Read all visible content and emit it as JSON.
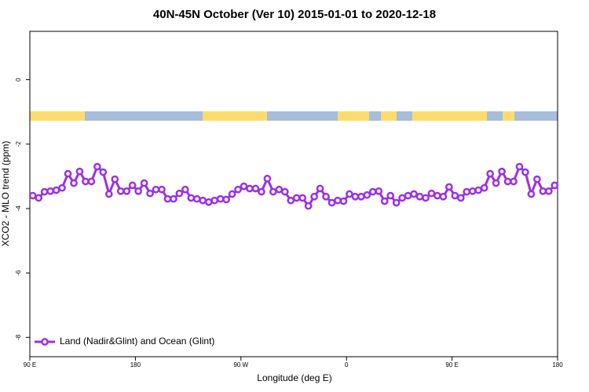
{
  "chart_data": {
    "type": "line",
    "title": "40N-45N October (Ver 10)   2015-01-01 to 2020-12-18",
    "x_label": "Longitude (deg E)",
    "y_label": "XCO2 - MLO trend (ppm)",
    "xlim": [
      90,
      540
    ],
    "xticks": [
      {
        "value": 90,
        "label": "90 E"
      },
      {
        "value": 180,
        "label": "180"
      },
      {
        "value": 270,
        "label": "90 W"
      },
      {
        "value": 360,
        "label": "0"
      },
      {
        "value": 450,
        "label": "90 E"
      },
      {
        "value": 540,
        "label": "180"
      }
    ],
    "ylim": [
      -8.6,
      1.5
    ],
    "yticks": [
      0,
      -2,
      -4,
      -6,
      -8
    ],
    "legend_position": "bottom-left",
    "x": [
      92.5,
      97.5,
      102.5,
      107.5,
      112.5,
      117.5,
      122.5,
      127.5,
      132.5,
      137.5,
      142.5,
      147.5,
      152.5,
      157.5,
      162.5,
      167.5,
      172.5,
      177.5,
      182.5,
      187.5,
      192.5,
      197.5,
      202.5,
      207.5,
      212.5,
      217.5,
      222.5,
      227.5,
      232.5,
      237.5,
      242.5,
      247.5,
      252.5,
      257.5,
      262.5,
      267.5,
      272.5,
      277.5,
      282.5,
      287.5,
      292.5,
      297.5,
      302.5,
      307.5,
      312.5,
      317.5,
      322.5,
      327.5,
      332.5,
      337.5,
      342.5,
      347.5,
      352.5,
      357.5,
      362.5,
      367.5,
      372.5,
      377.5,
      382.5,
      387.5,
      392.5,
      397.5,
      402.5,
      407.5,
      412.5,
      417.5,
      422.5,
      427.5,
      432.5,
      437.5,
      442.5,
      447.5,
      452.5,
      457.5,
      462.5,
      467.5,
      472.5,
      477.5,
      482.5,
      487.5,
      492.5,
      497.5,
      502.5,
      507.5,
      512.5,
      517.5,
      522.5,
      527.5,
      532.5,
      537.5
    ],
    "series": [
      {
        "name": "Land (Nadir&Glint) and Ocean (Glint)",
        "color": "#9b30e6",
        "values": [
          -3.6,
          -3.67,
          -3.48,
          -3.46,
          -3.43,
          -3.36,
          -2.92,
          -3.21,
          -2.85,
          -3.16,
          -3.16,
          -2.7,
          -2.87,
          -3.55,
          -3.09,
          -3.46,
          -3.46,
          -3.28,
          -3.46,
          -3.21,
          -3.53,
          -3.41,
          -3.41,
          -3.7,
          -3.7,
          -3.53,
          -3.41,
          -3.67,
          -3.7,
          -3.75,
          -3.8,
          -3.75,
          -3.7,
          -3.72,
          -3.55,
          -3.41,
          -3.31,
          -3.38,
          -3.38,
          -3.48,
          -3.07,
          -3.48,
          -3.41,
          -3.48,
          -3.75,
          -3.67,
          -3.67,
          -3.92,
          -3.63,
          -3.38,
          -3.63,
          -3.82,
          -3.75,
          -3.77,
          -3.55,
          -3.63,
          -3.63,
          -3.58,
          -3.48,
          -3.46,
          -3.77,
          -3.6,
          -3.82,
          -3.67,
          -3.6,
          -3.55,
          -3.63,
          -3.67,
          -3.53,
          -3.6,
          -3.63,
          -3.33,
          -3.6,
          -3.67,
          -3.48,
          -3.46,
          -3.43,
          -3.36,
          -2.92,
          -3.21,
          -2.85,
          -3.16,
          -3.16,
          -2.7,
          -2.87,
          -3.55,
          -3.09,
          -3.46,
          -3.46,
          -3.28
        ]
      }
    ]
  }
}
